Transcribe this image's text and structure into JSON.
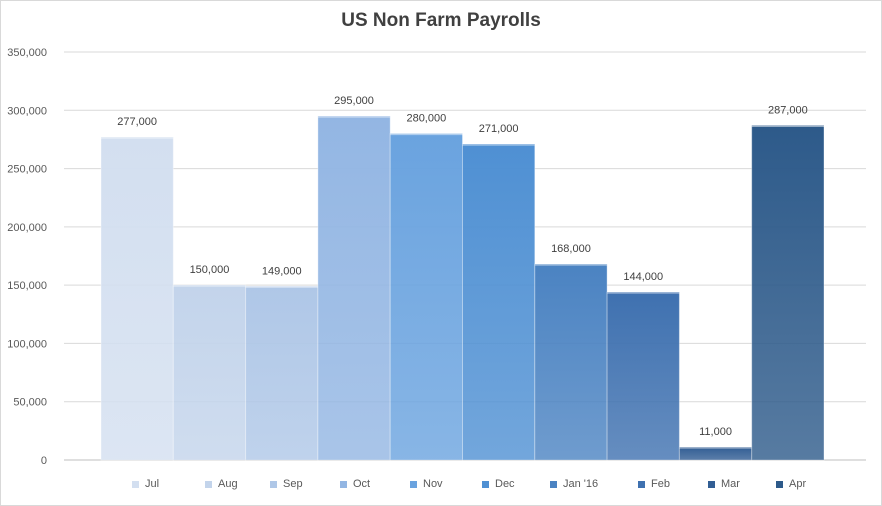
{
  "chart_data": {
    "type": "bar",
    "title": "US Non Farm Payrolls",
    "xlabel": "",
    "ylabel": "",
    "categories": [
      "Jul",
      "Aug",
      "Sep",
      "Oct",
      "Nov",
      "Dec",
      "Jan '16",
      "Feb",
      "Mar",
      "Apr"
    ],
    "values": [
      277000,
      150000,
      149000,
      295000,
      280000,
      271000,
      168000,
      144000,
      11000,
      287000
    ],
    "data_labels": [
      "277,000",
      "150,000",
      "149,000",
      "295,000",
      "280,000",
      "271,000",
      "168,000",
      "144,000",
      "11,000",
      "287,000"
    ],
    "ylim": [
      0,
      350000
    ],
    "yticks": [
      0,
      50000,
      100000,
      150000,
      200000,
      250000,
      300000,
      350000
    ],
    "ytick_labels": [
      "0",
      "50,000",
      "100,000",
      "150,000",
      "200,000",
      "250,000",
      "300,000",
      "350,000"
    ],
    "grid": true,
    "legend_position": "bottom",
    "colors": [
      "#d3dff0",
      "#c3d4eb",
      "#afc7e7",
      "#93b6e3",
      "#6aa3df",
      "#4f90d3",
      "#4b83c2",
      "#3f71b0",
      "#325e94",
      "#2d5a8a"
    ]
  }
}
